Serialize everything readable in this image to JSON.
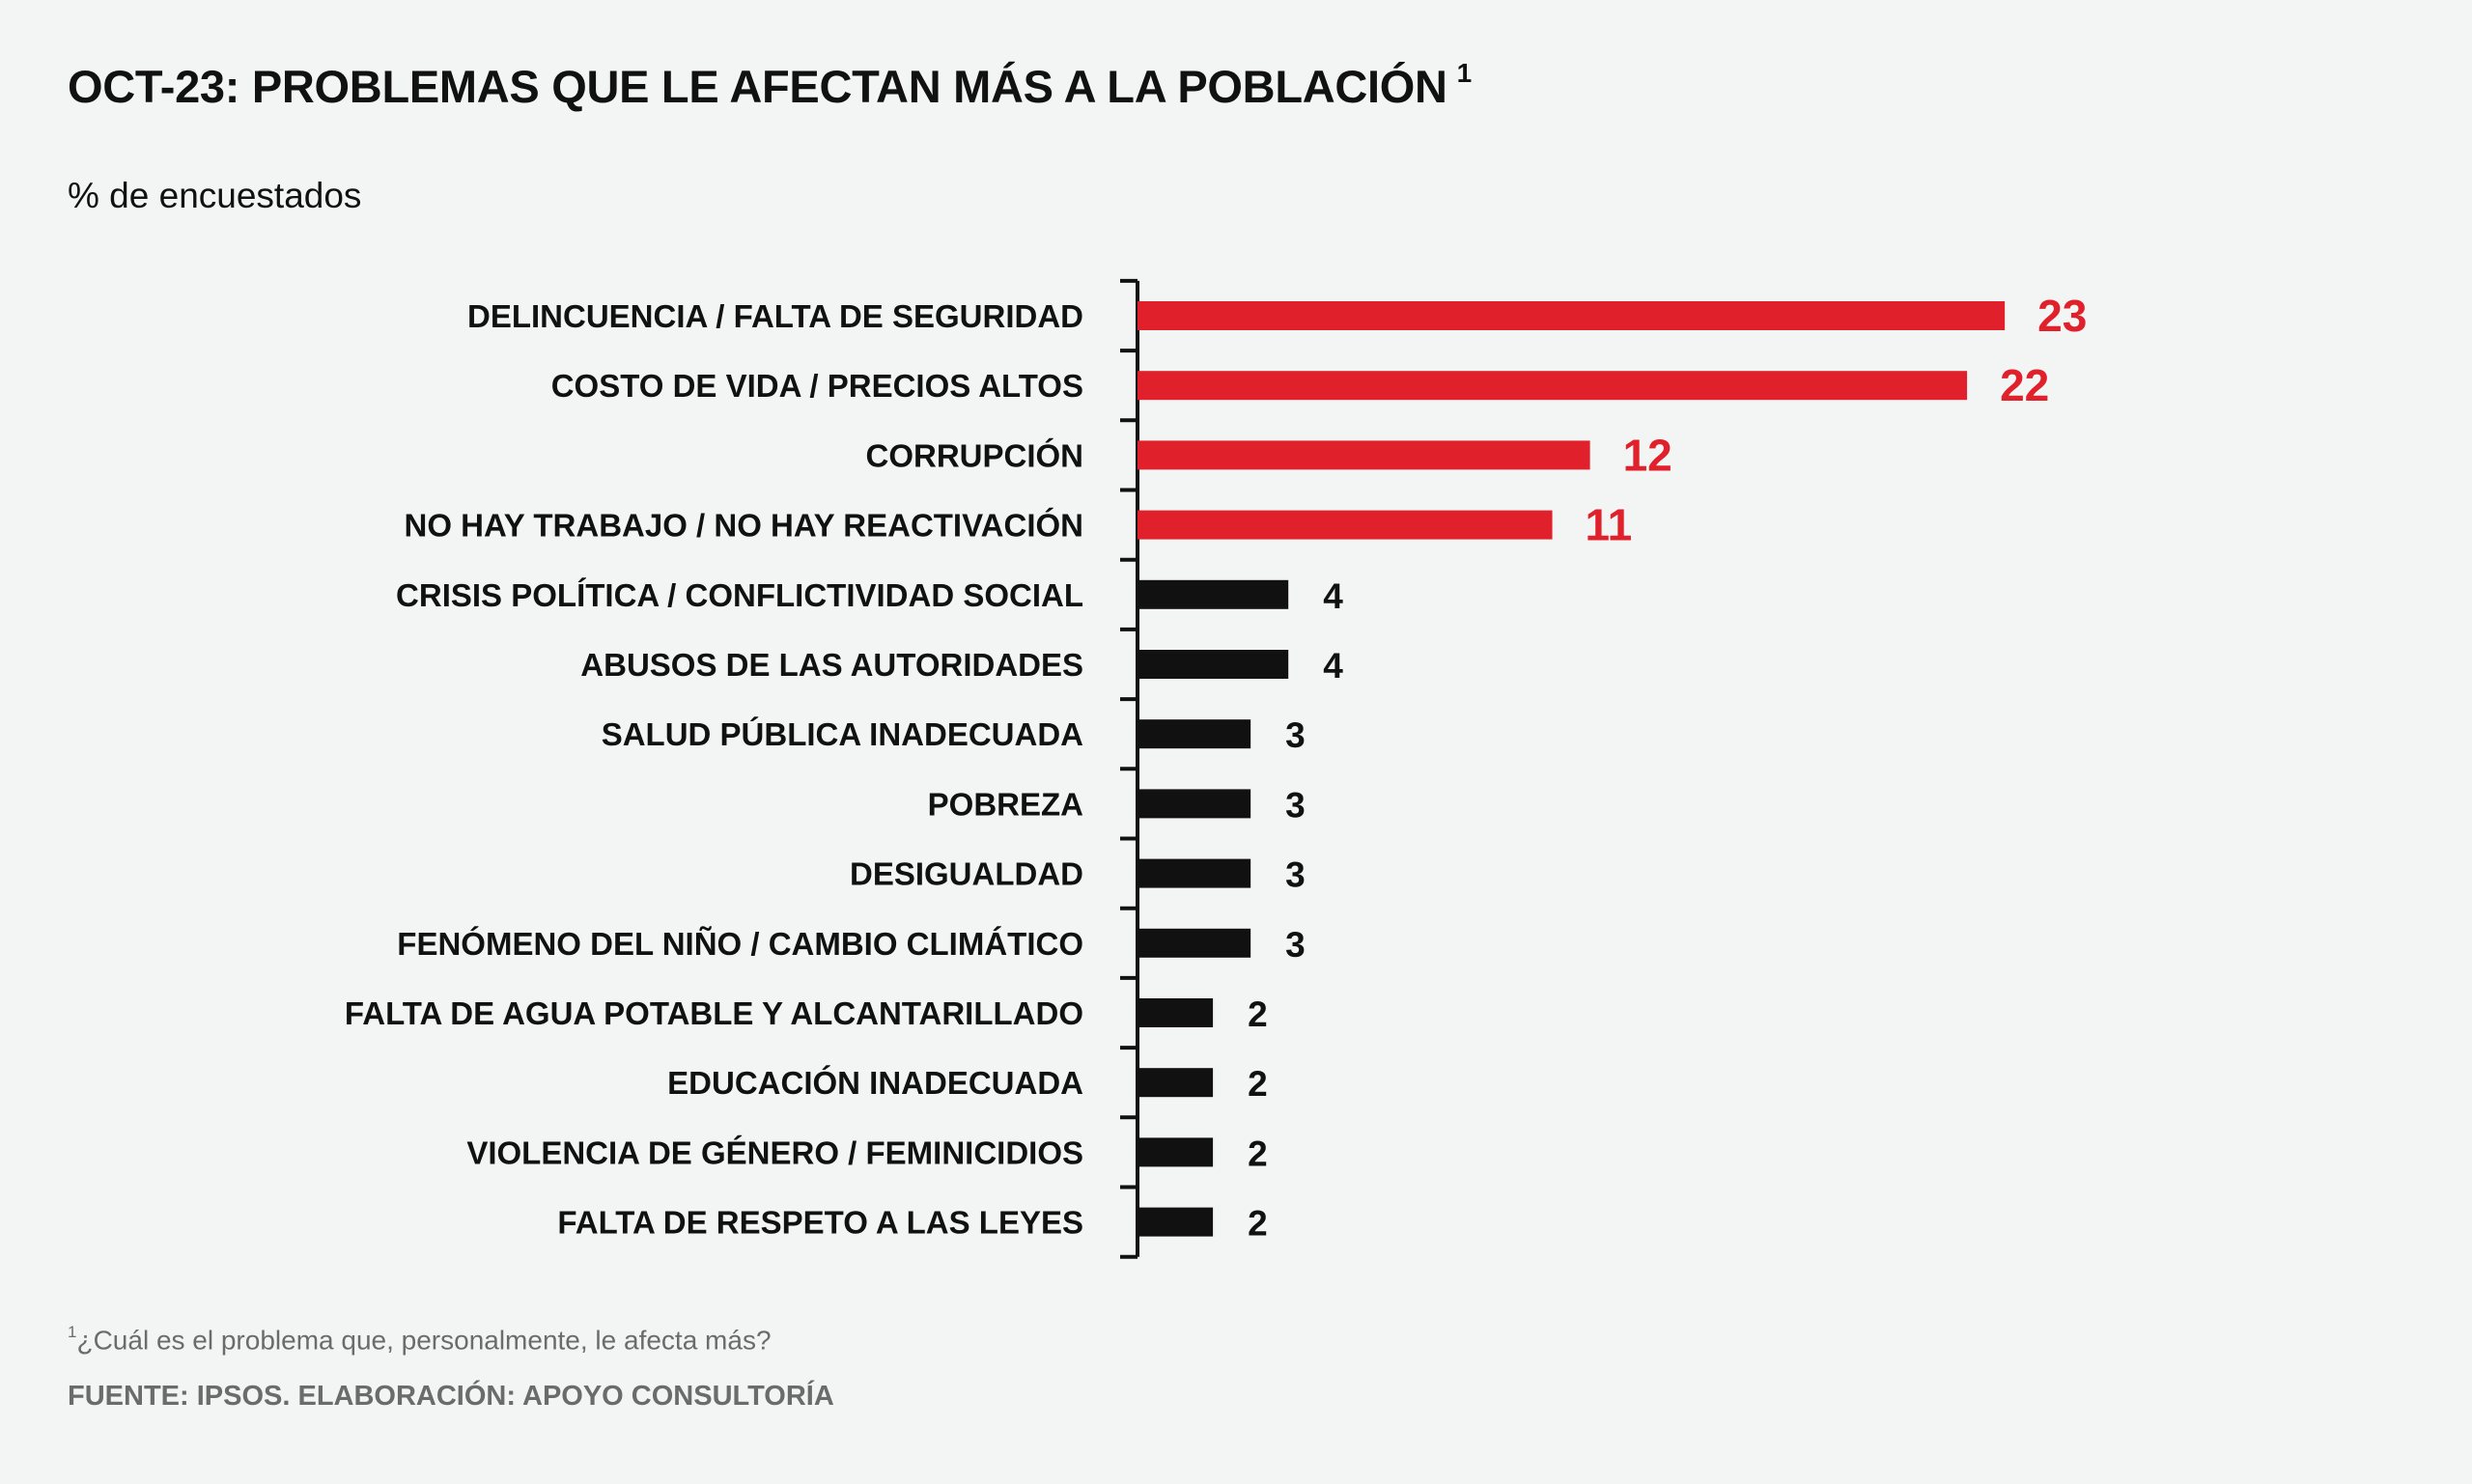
{
  "header": {
    "title": "OCT-23: PROBLEMAS QUE LE AFECTAN MÁS A LA POBLACIÓN",
    "title_note_marker": "1",
    "subtitle": "% de encuestados"
  },
  "footer": {
    "note_marker": "1",
    "note_text": "¿Cuál es el problema que, personalmente, le afecta más?",
    "source": "FUENTE: IPSOS. ELABORACIÓN: APOYO CONSULTORÍA"
  },
  "colors": {
    "highlight": "#e0202a",
    "default": "#111111",
    "background": "#f3f5f4"
  },
  "chart_data": {
    "type": "bar",
    "orientation": "horizontal",
    "title": "OCT-23: PROBLEMAS QUE LE AFECTAN MÁS A LA POBLACIÓN",
    "subtitle": "% de encuestados",
    "xlabel": "",
    "ylabel": "",
    "categories": [
      "DELINCUENCIA / FALTA DE SEGURIDAD",
      "COSTO DE VIDA / PRECIOS ALTOS",
      "CORRUPCIÓN",
      "NO HAY TRABAJO / NO HAY REACTIVACIÓN",
      "CRISIS POLÍTICA / CONFLICTIVIDAD SOCIAL",
      "ABUSOS DE LAS AUTORIDADES",
      "SALUD PÚBLICA INADECUADA",
      "POBREZA",
      "DESIGUALDAD",
      "FENÓMENO DEL NIÑO / CAMBIO CLIMÁTICO",
      "FALTA DE AGUA POTABLE Y ALCANTARILLADO",
      "EDUCACIÓN INADECUADA",
      "VIOLENCIA DE GÉNERO / FEMINICIDIOS",
      "FALTA DE RESPETO A LAS LEYES"
    ],
    "values": [
      23,
      22,
      12,
      11,
      4,
      4,
      3,
      3,
      3,
      3,
      2,
      2,
      2,
      2
    ],
    "highlighted": [
      true,
      true,
      true,
      true,
      false,
      false,
      false,
      false,
      false,
      false,
      false,
      false,
      false,
      false
    ],
    "xlim": [
      0,
      23
    ],
    "grid": false,
    "legend": "none",
    "data_labels": true
  }
}
